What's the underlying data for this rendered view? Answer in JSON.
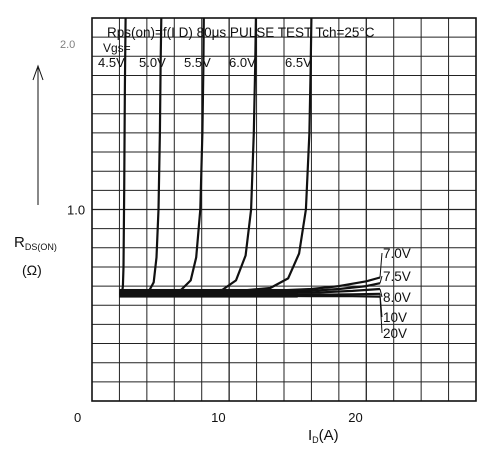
{
  "chart_data": {
    "type": "line",
    "title": "",
    "annotation_line1": "Rps(on)=f(I D) 80μs PULSE TEST Tch=25°C",
    "annotation_line2": "Vgs=",
    "top_left_mark": "2.0",
    "ylabel": "R",
    "ylabel_sub": "DS(ON)",
    "yunit": "(Ω)",
    "xlabel": "I",
    "xlabel_sub": "D",
    "xunit": "(A)",
    "xlim": [
      0,
      28
    ],
    "ylim": [
      0,
      2
    ],
    "x_ticks": [
      {
        "value": 0,
        "label": "0"
      },
      {
        "value": 10,
        "label": "10"
      },
      {
        "value": 20,
        "label": "20"
      }
    ],
    "y_ticks": [
      {
        "value": 1.0,
        "label": "1.0"
      }
    ],
    "grid": true,
    "series": [
      {
        "name": "4.5V",
        "points": [
          [
            2,
            0.56
          ],
          [
            2.1,
            0.56
          ],
          [
            2.2,
            0.57
          ],
          [
            2.25,
            0.6
          ],
          [
            2.3,
            0.7
          ],
          [
            2.35,
            1.1
          ],
          [
            2.4,
            1.65
          ],
          [
            2.45,
            2.0
          ]
        ]
      },
      {
        "name": "5.0V",
        "points": [
          [
            2,
            0.56
          ],
          [
            3.5,
            0.565
          ],
          [
            4.2,
            0.58
          ],
          [
            4.5,
            0.62
          ],
          [
            4.7,
            0.75
          ],
          [
            4.85,
            1.0
          ],
          [
            4.95,
            1.4
          ],
          [
            5.0,
            1.75
          ],
          [
            5.05,
            2.0
          ]
        ]
      },
      {
        "name": "5.5V",
        "points": [
          [
            2,
            0.56
          ],
          [
            5,
            0.565
          ],
          [
            6.5,
            0.58
          ],
          [
            7.2,
            0.63
          ],
          [
            7.6,
            0.75
          ],
          [
            7.9,
            1.0
          ],
          [
            8.05,
            1.4
          ],
          [
            8.12,
            1.75
          ],
          [
            8.15,
            2.0
          ]
        ]
      },
      {
        "name": "6.0V",
        "points": [
          [
            2,
            0.56
          ],
          [
            7,
            0.565
          ],
          [
            9.5,
            0.58
          ],
          [
            10.5,
            0.63
          ],
          [
            11.2,
            0.76
          ],
          [
            11.6,
            1.0
          ],
          [
            11.8,
            1.4
          ],
          [
            11.9,
            1.75
          ],
          [
            11.95,
            2.0
          ]
        ]
      },
      {
        "name": "6.5V",
        "points": [
          [
            2,
            0.56
          ],
          [
            10,
            0.57
          ],
          [
            13,
            0.59
          ],
          [
            14.3,
            0.64
          ],
          [
            15.1,
            0.77
          ],
          [
            15.6,
            1.0
          ],
          [
            15.85,
            1.4
          ],
          [
            15.95,
            1.75
          ],
          [
            16.0,
            2.0
          ]
        ]
      },
      {
        "name": "7.0V",
        "points": [
          [
            2,
            0.57
          ],
          [
            8,
            0.575
          ],
          [
            13,
            0.575
          ],
          [
            16,
            0.585
          ],
          [
            18,
            0.6
          ],
          [
            20,
            0.625
          ],
          [
            21,
            0.645
          ]
        ]
      },
      {
        "name": "7.5V",
        "points": [
          [
            2,
            0.565
          ],
          [
            8,
            0.57
          ],
          [
            13,
            0.57
          ],
          [
            16,
            0.575
          ],
          [
            18,
            0.585
          ],
          [
            20,
            0.6
          ],
          [
            21,
            0.615
          ]
        ]
      },
      {
        "name": "8.0V",
        "points": [
          [
            2,
            0.56
          ],
          [
            10,
            0.565
          ],
          [
            16,
            0.565
          ],
          [
            19,
            0.575
          ],
          [
            21,
            0.585
          ]
        ]
      },
      {
        "name": "10V",
        "points": [
          [
            2,
            0.555
          ],
          [
            10,
            0.555
          ],
          [
            16,
            0.555
          ],
          [
            19,
            0.557
          ],
          [
            21,
            0.56
          ]
        ]
      },
      {
        "name": "20V",
        "points": [
          [
            2,
            0.55
          ],
          [
            10,
            0.55
          ],
          [
            16,
            0.548
          ],
          [
            19,
            0.547
          ],
          [
            21,
            0.545
          ]
        ]
      }
    ],
    "series_label_left_prefix": "4",
    "vgs_labels_top": [
      "4.5V",
      "5.0V",
      "5.5V",
      "6.0V",
      "6.5V"
    ],
    "vgs_labels_right": [
      "7.0V",
      "7.5V",
      "8.0V",
      "10V",
      "20V"
    ],
    "line_color": "#111111",
    "grid_color": "#222222"
  }
}
